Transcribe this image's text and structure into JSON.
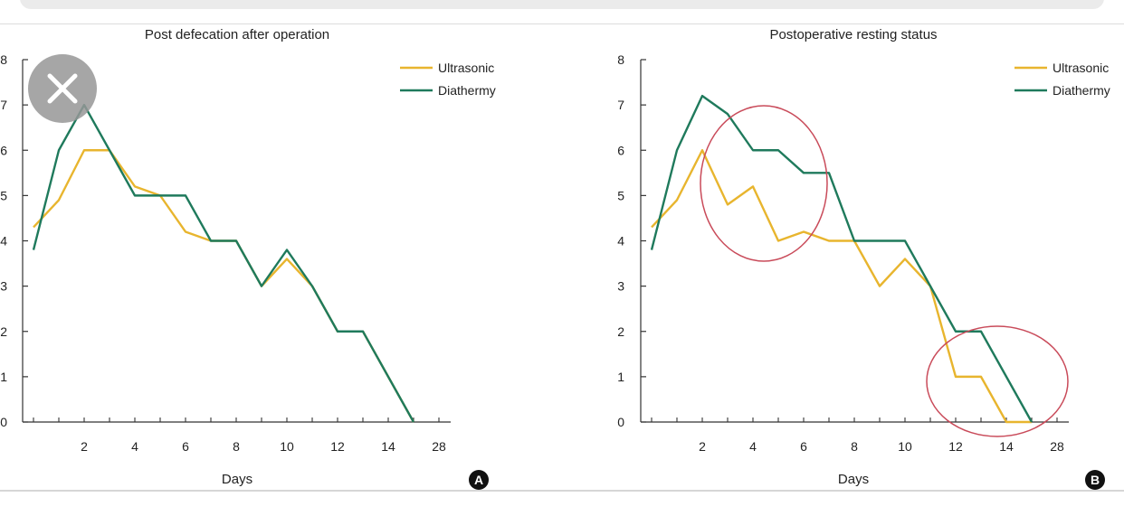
{
  "colors": {
    "ultrasonic": "#e8b52e",
    "diathermy": "#1f7a5c",
    "axis": "#333333",
    "circle": "#c94b5a",
    "badge": "#111111",
    "close_bg": "#9a9a9a"
  },
  "close_button": {
    "icon": "close-icon"
  },
  "chart_data": [
    {
      "type": "line",
      "title": "Post defecation after operation",
      "xlabel": "Days",
      "ylabel": "",
      "panel_label": "A",
      "ylim": [
        0,
        8
      ],
      "yticks": [
        "0",
        "1",
        "2",
        "3",
        "4",
        "5",
        "6",
        "7",
        "8"
      ],
      "x_tick_labels": [
        "2",
        "4",
        "6",
        "8",
        "10",
        "12",
        "14",
        "28"
      ],
      "legend_position": "top-right",
      "grid": false,
      "series": [
        {
          "name": "Ultrasonic",
          "x": [
            0,
            1,
            2,
            3,
            4,
            5,
            6,
            7,
            8,
            9,
            10,
            11,
            12,
            13,
            14,
            15
          ],
          "values": [
            4.3,
            4.9,
            6.0,
            6.0,
            5.2,
            5.0,
            4.2,
            4.0,
            4.0,
            3.0,
            3.6,
            3.0,
            2.0,
            2.0,
            1.0,
            0.0
          ]
        },
        {
          "name": "Diathermy",
          "x": [
            0,
            1,
            2,
            3,
            4,
            5,
            6,
            7,
            8,
            9,
            10,
            11,
            12,
            13,
            14,
            15
          ],
          "values": [
            3.8,
            6.0,
            7.0,
            6.0,
            5.0,
            5.0,
            5.0,
            4.0,
            4.0,
            3.0,
            3.8,
            3.0,
            2.0,
            2.0,
            1.0,
            0.0
          ]
        }
      ]
    },
    {
      "type": "line",
      "title": "Postoperative resting status",
      "xlabel": "Days",
      "ylabel": "",
      "panel_label": "B",
      "ylim": [
        0,
        8
      ],
      "yticks": [
        "0",
        "1",
        "2",
        "3",
        "4",
        "5",
        "6",
        "7",
        "8"
      ],
      "x_tick_labels": [
        "2",
        "4",
        "6",
        "8",
        "10",
        "12",
        "14",
        "28"
      ],
      "legend_position": "top-right",
      "grid": false,
      "series": [
        {
          "name": "Ultrasonic",
          "x": [
            0,
            1,
            2,
            3,
            4,
            5,
            6,
            7,
            8,
            9,
            10,
            11,
            12,
            13,
            14,
            15
          ],
          "values": [
            4.3,
            4.9,
            6.0,
            4.8,
            5.2,
            4.0,
            4.2,
            4.0,
            4.0,
            3.0,
            3.6,
            3.0,
            1.0,
            1.0,
            0.0,
            0.0
          ]
        },
        {
          "name": "Diathermy",
          "x": [
            0,
            1,
            2,
            3,
            4,
            5,
            6,
            7,
            8,
            9,
            10,
            11,
            12,
            13,
            14,
            15
          ],
          "values": [
            3.8,
            6.0,
            7.2,
            6.8,
            6.0,
            6.0,
            5.5,
            5.5,
            4.0,
            4.0,
            4.0,
            3.0,
            2.0,
            2.0,
            1.0,
            0.0
          ]
        }
      ],
      "highlight_circles": 2
    }
  ]
}
